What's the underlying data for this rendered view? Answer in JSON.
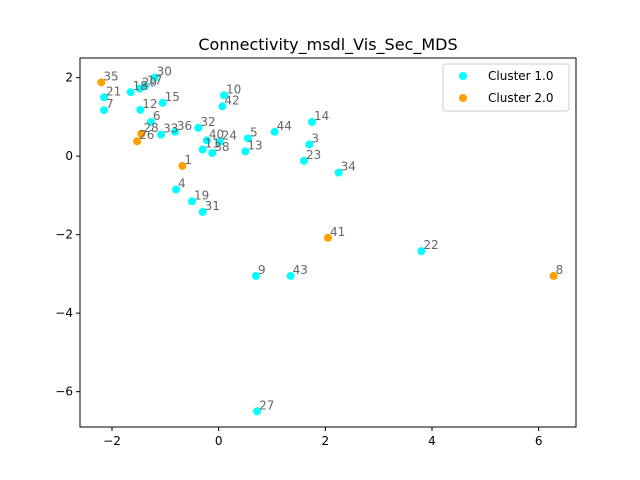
{
  "chart_data": {
    "type": "scatter",
    "title": "Connectivity_msdl_Vis_Sec_MDS",
    "xlabel": "",
    "ylabel": "",
    "xlim": [
      -2.6,
      6.7
    ],
    "ylim": [
      -6.9,
      2.5
    ],
    "x_ticks": [
      -2,
      0,
      2,
      4,
      6
    ],
    "y_ticks": [
      -6,
      -4,
      -2,
      0,
      2
    ],
    "grid": false,
    "legend": "top-right",
    "series": [
      {
        "name": "Cluster 1.0",
        "color": "#00ffff",
        "points": [
          {
            "label": "30",
            "x": -1.2,
            "y": 2.0
          },
          {
            "label": "21",
            "x": -2.15,
            "y": 1.5
          },
          {
            "label": "7",
            "x": -2.15,
            "y": 1.17
          },
          {
            "label": "18",
            "x": -1.65,
            "y": 1.63
          },
          {
            "label": "29",
            "x": -1.48,
            "y": 1.72
          },
          {
            "label": "17",
            "x": -1.38,
            "y": 1.78
          },
          {
            "label": "12",
            "x": -1.47,
            "y": 1.18
          },
          {
            "label": "15",
            "x": -1.05,
            "y": 1.36
          },
          {
            "label": "6",
            "x": -1.27,
            "y": 0.87
          },
          {
            "label": "33",
            "x": -1.08,
            "y": 0.55
          },
          {
            "label": "36",
            "x": -0.82,
            "y": 0.62
          },
          {
            "label": "32",
            "x": -0.38,
            "y": 0.72
          },
          {
            "label": "10",
            "x": 0.1,
            "y": 1.55
          },
          {
            "label": "42",
            "x": 0.07,
            "y": 1.27
          },
          {
            "label": "40",
            "x": -0.22,
            "y": 0.4
          },
          {
            "label": "24",
            "x": 0.02,
            "y": 0.37
          },
          {
            "label": "11",
            "x": -0.3,
            "y": 0.17
          },
          {
            "label": "38",
            "x": -0.12,
            "y": 0.08
          },
          {
            "label": "5",
            "x": 0.55,
            "y": 0.45
          },
          {
            "label": "13",
            "x": 0.5,
            "y": 0.12
          },
          {
            "label": "44",
            "x": 1.05,
            "y": 0.62
          },
          {
            "label": "14",
            "x": 1.75,
            "y": 0.87
          },
          {
            "label": "3",
            "x": 1.7,
            "y": 0.3
          },
          {
            "label": "23",
            "x": 1.6,
            "y": -0.12
          },
          {
            "label": "34",
            "x": 2.25,
            "y": -0.42
          },
          {
            "label": "4",
            "x": -0.8,
            "y": -0.85
          },
          {
            "label": "19",
            "x": -0.5,
            "y": -1.15
          },
          {
            "label": "31",
            "x": -0.3,
            "y": -1.42
          },
          {
            "label": "22",
            "x": 3.8,
            "y": -2.42
          },
          {
            "label": "9",
            "x": 0.7,
            "y": -3.05
          },
          {
            "label": "43",
            "x": 1.35,
            "y": -3.05
          },
          {
            "label": "27",
            "x": 0.72,
            "y": -6.5
          }
        ]
      },
      {
        "name": "Cluster 2.0",
        "color": "#ff9f00",
        "points": [
          {
            "label": "35",
            "x": -2.2,
            "y": 1.88
          },
          {
            "label": "28",
            "x": -1.45,
            "y": 0.57
          },
          {
            "label": "26",
            "x": -1.53,
            "y": 0.38
          },
          {
            "label": "1",
            "x": -0.68,
            "y": -0.25
          },
          {
            "label": "41",
            "x": 2.05,
            "y": -2.08
          },
          {
            "label": "8",
            "x": 6.28,
            "y": -3.05
          }
        ]
      }
    ]
  }
}
